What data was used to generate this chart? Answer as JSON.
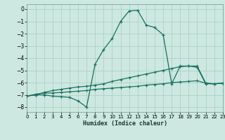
{
  "xlabel": "Humidex (Indice chaleur)",
  "bg_color": "#cce8e0",
  "grid_color": "#aaccbf",
  "line_color": "#1a7060",
  "xlim": [
    0,
    23
  ],
  "ylim": [
    -8.4,
    0.4
  ],
  "xticks": [
    0,
    1,
    2,
    3,
    4,
    5,
    6,
    7,
    8,
    9,
    10,
    11,
    12,
    13,
    14,
    15,
    16,
    17,
    18,
    19,
    20,
    21,
    22,
    23
  ],
  "yticks": [
    0,
    -1,
    -2,
    -3,
    -4,
    -5,
    -6,
    -7,
    -8
  ],
  "line1_x": [
    0,
    1,
    2,
    3,
    4,
    5,
    6,
    7,
    8,
    9,
    10,
    11,
    12,
    13,
    14,
    15,
    16,
    17,
    18,
    19,
    20,
    21,
    22,
    23
  ],
  "line1_y": [
    -7.1,
    -7.0,
    -7.0,
    -7.1,
    -7.15,
    -7.2,
    -7.5,
    -8.0,
    -4.5,
    -3.3,
    -2.4,
    -1.0,
    -0.15,
    -0.1,
    -1.3,
    -1.5,
    -2.1,
    -6.1,
    -4.65,
    -4.65,
    -4.75,
    -6.1,
    -6.1,
    -6.05
  ],
  "line2_x": [
    0,
    1,
    2,
    3,
    4,
    5,
    6,
    7,
    8,
    9,
    10,
    11,
    12,
    13,
    14,
    15,
    16,
    17,
    18,
    19,
    20,
    21,
    22,
    23
  ],
  "line2_y": [
    -7.1,
    -7.0,
    -6.8,
    -6.65,
    -6.55,
    -6.45,
    -6.35,
    -6.3,
    -6.2,
    -6.1,
    -5.9,
    -5.75,
    -5.6,
    -5.45,
    -5.3,
    -5.15,
    -5.0,
    -4.85,
    -4.7,
    -4.65,
    -4.65,
    -6.05,
    -6.1,
    -6.05
  ],
  "line3_x": [
    0,
    1,
    2,
    3,
    4,
    5,
    6,
    7,
    8,
    9,
    10,
    11,
    12,
    13,
    14,
    15,
    16,
    17,
    18,
    19,
    20,
    21,
    22,
    23
  ],
  "line3_y": [
    -7.1,
    -6.95,
    -6.85,
    -6.85,
    -6.8,
    -6.75,
    -6.7,
    -6.65,
    -6.55,
    -6.5,
    -6.45,
    -6.4,
    -6.35,
    -6.3,
    -6.2,
    -6.15,
    -6.1,
    -6.0,
    -5.95,
    -5.9,
    -5.85,
    -6.05,
    -6.1,
    -6.05
  ]
}
